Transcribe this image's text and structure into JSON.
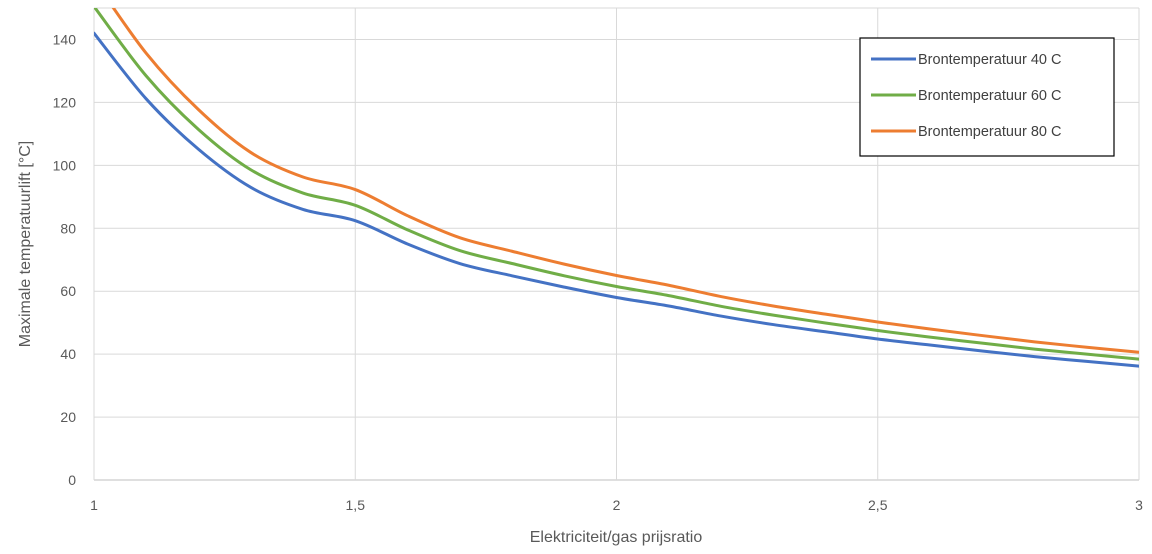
{
  "chart_data": {
    "type": "line",
    "xlabel": "Elektriciteit/gas prijsratio",
    "ylabel": "Maximale temperatuurlift [°C]",
    "xlim": [
      1,
      3
    ],
    "ylim": [
      0,
      150
    ],
    "x_ticks": [
      {
        "value": 1,
        "label": "1"
      },
      {
        "value": 1.5,
        "label": "1,5"
      },
      {
        "value": 2,
        "label": "2"
      },
      {
        "value": 2.5,
        "label": "2,5"
      },
      {
        "value": 3,
        "label": "3"
      }
    ],
    "y_ticks": [
      {
        "value": 0,
        "label": "0"
      },
      {
        "value": 20,
        "label": "20"
      },
      {
        "value": 40,
        "label": "40"
      },
      {
        "value": 60,
        "label": "60"
      },
      {
        "value": 80,
        "label": "80"
      },
      {
        "value": 100,
        "label": "100"
      },
      {
        "value": 120,
        "label": "120"
      },
      {
        "value": 140,
        "label": "140"
      }
    ],
    "grid": true,
    "legend_position": "top-right",
    "x": [
      1.0,
      1.1,
      1.2,
      1.3,
      1.4,
      1.5,
      1.6,
      1.7,
      1.8,
      1.9,
      2.0,
      2.1,
      2.2,
      2.3,
      2.4,
      2.5,
      2.6,
      2.7,
      2.8,
      2.9,
      3.0
    ],
    "series": [
      {
        "name": "Brontemperatuur 40 C",
        "color": "#4472C4",
        "values": [
          142.0,
          121.1,
          105.1,
          93.0,
          86.0,
          82.4,
          75.0,
          68.8,
          64.9,
          61.3,
          58.0,
          55.3,
          52.1,
          49.4,
          47.1,
          44.8,
          42.9,
          41.0,
          39.2,
          37.7,
          36.2
        ]
      },
      {
        "name": "Brontemperatuur 60 C",
        "color": "#70AD47",
        "values": [
          150.5,
          128.4,
          111.4,
          98.6,
          91.2,
          87.3,
          79.5,
          72.9,
          68.8,
          64.9,
          61.5,
          58.6,
          55.2,
          52.4,
          49.9,
          47.5,
          45.4,
          43.5,
          41.6,
          40.0,
          38.4
        ]
      },
      {
        "name": "Brontemperatuur 80 C",
        "color": "#ED7D31",
        "values": [
          159.0,
          135.6,
          117.7,
          104.1,
          96.3,
          92.3,
          84.0,
          77.0,
          72.7,
          68.6,
          65.0,
          61.9,
          58.3,
          55.3,
          52.7,
          50.2,
          48.0,
          45.9,
          43.9,
          42.2,
          40.6
        ]
      }
    ]
  }
}
